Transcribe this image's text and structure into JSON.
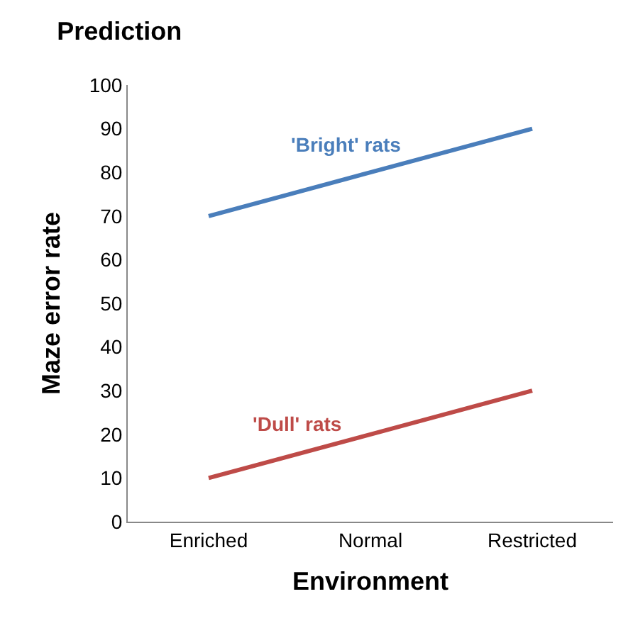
{
  "chart_data": {
    "type": "line",
    "title": "Prediction",
    "xlabel": "Environment",
    "ylabel": "Maze error rate",
    "categories": [
      "Enriched",
      "Normal",
      "Restricted"
    ],
    "series": [
      {
        "name": "'Bright' rats",
        "color": "#4a7ebb",
        "values": [
          70,
          80,
          90
        ]
      },
      {
        "name": "'Dull' rats",
        "color": "#be4b48",
        "values": [
          10,
          20,
          30
        ]
      }
    ],
    "ylim": [
      0,
      100
    ],
    "yticks": [
      0,
      10,
      20,
      30,
      40,
      50,
      60,
      70,
      80,
      90,
      100
    ],
    "legend": false,
    "marker": "none",
    "line_style": "solid"
  }
}
